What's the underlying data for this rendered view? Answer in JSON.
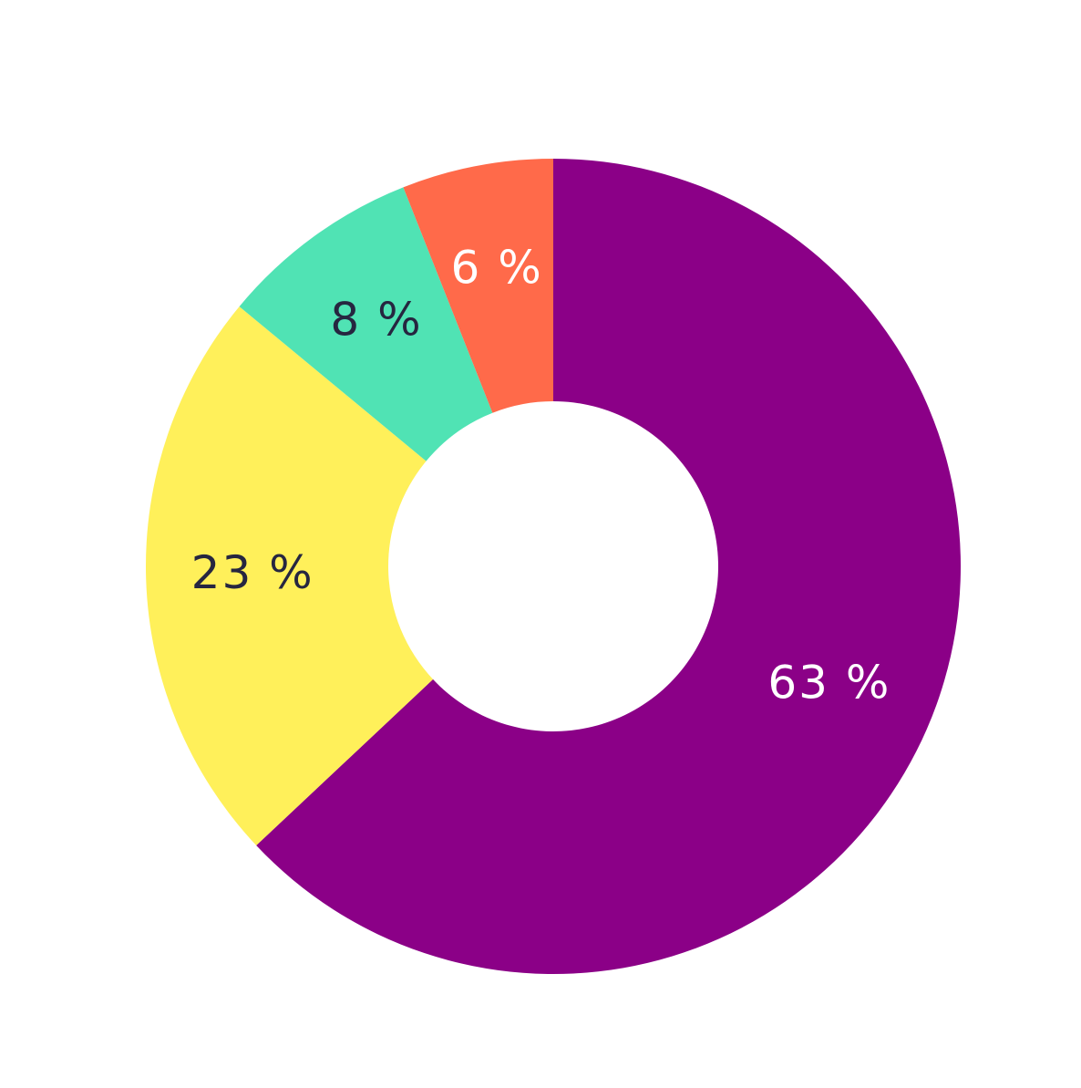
{
  "chart_data": {
    "type": "donut",
    "categories": [
      null,
      null,
      null,
      null
    ],
    "values": [
      63,
      23,
      8,
      6
    ],
    "value_labels": [
      "63 %",
      "23 %",
      "8 %",
      "6 %"
    ],
    "colors": [
      "#8b0087",
      "#fff05a",
      "#50e3b4",
      "#ff6a4a"
    ],
    "label_colors": [
      "#ffffff",
      "#262640",
      "#262640",
      "#ffffff"
    ]
  }
}
